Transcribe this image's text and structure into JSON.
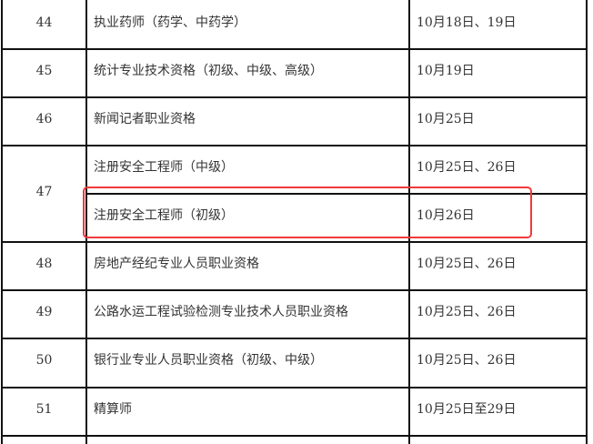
{
  "table": {
    "rows": [
      {
        "no": "44",
        "items": [
          {
            "name": "执业药师（药学、中药学）",
            "date": "10月18日、19日"
          }
        ]
      },
      {
        "no": "45",
        "items": [
          {
            "name": "统计专业技术资格（初级、中级、高级）",
            "date": "10月19日"
          }
        ]
      },
      {
        "no": "46",
        "items": [
          {
            "name": "新闻记者职业资格",
            "date": "10月25日"
          }
        ]
      },
      {
        "no": "47",
        "items": [
          {
            "name": "注册安全工程师（中级）",
            "date": "10月25日、26日"
          },
          {
            "name": "注册安全工程师（初级）",
            "date": "10月26日",
            "highlighted": true
          }
        ]
      },
      {
        "no": "48",
        "items": [
          {
            "name": "房地产经纪专业人员职业资格",
            "date": "10月25日、26日"
          }
        ]
      },
      {
        "no": "49",
        "items": [
          {
            "name": "公路水运工程试验检测专业技术人员职业资格",
            "date": "10月25日、26日"
          }
        ]
      },
      {
        "no": "50",
        "items": [
          {
            "name": "银行业专业人员职业资格（初级、中级）",
            "date": "10月25日、26日"
          }
        ]
      },
      {
        "no": "51",
        "items": [
          {
            "name": "精算师",
            "date": "10月25日至29日"
          }
        ]
      }
    ],
    "highlight_color": "#f03a3a"
  }
}
